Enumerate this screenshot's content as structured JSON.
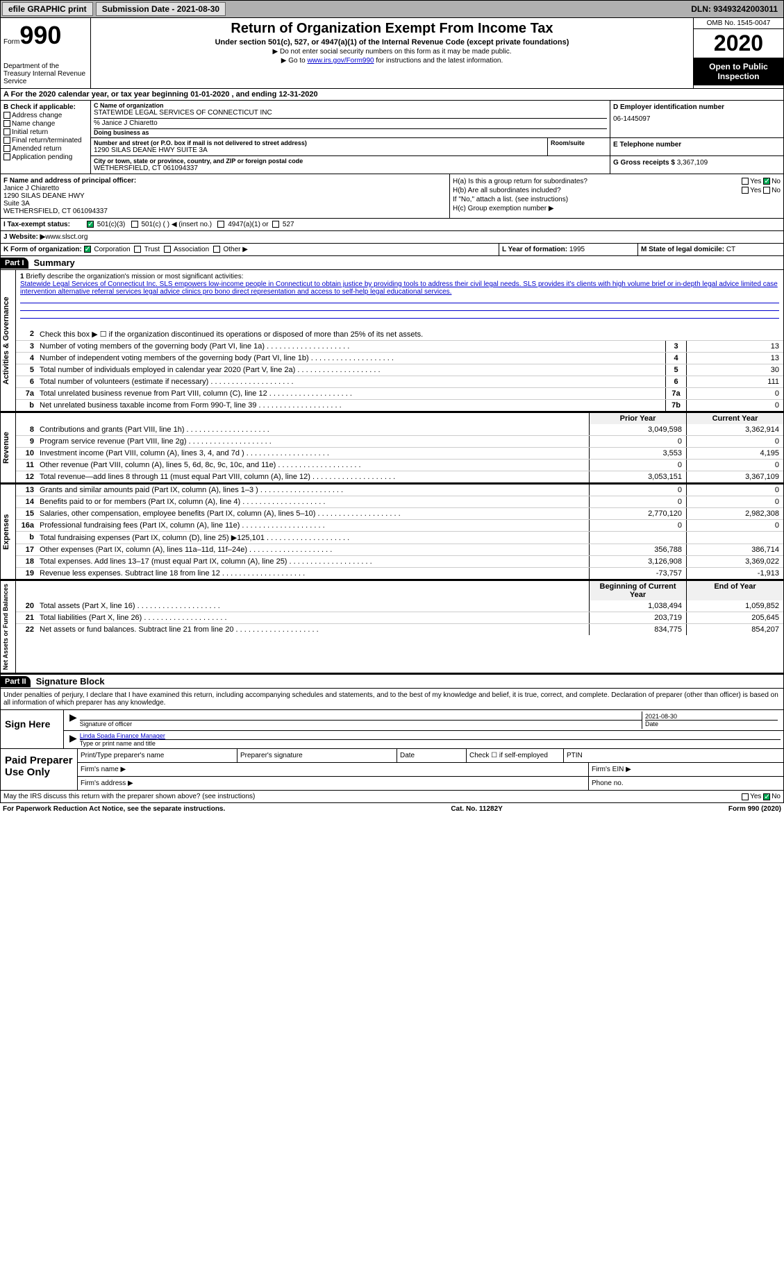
{
  "topbar": {
    "efile": "efile GRAPHIC print",
    "submission_label": "Submission Date - 2021-08-30",
    "dln": "DLN: 93493242003011"
  },
  "header": {
    "form_word": "Form",
    "form_num": "990",
    "dept": "Department of the Treasury\nInternal Revenue Service",
    "title": "Return of Organization Exempt From Income Tax",
    "subtitle": "Under section 501(c), 527, or 4947(a)(1) of the Internal Revenue Code (except private foundations)",
    "note1": "▶ Do not enter social security numbers on this form as it may be made public.",
    "note2_pre": "▶ Go to ",
    "note2_link": "www.irs.gov/Form990",
    "note2_post": " for instructions and the latest information.",
    "omb": "OMB No. 1545-0047",
    "year": "2020",
    "open": "Open to Public Inspection"
  },
  "period": "A For the 2020 calendar year, or tax year beginning 01-01-2020   , and ending 12-31-2020",
  "box_b": {
    "head": "B Check if applicable:",
    "items": [
      "Address change",
      "Name change",
      "Initial return",
      "Final return/terminated",
      "Amended return",
      "Application pending"
    ]
  },
  "box_c": {
    "name_lbl": "C Name of organization",
    "name": "STATEWIDE LEGAL SERVICES OF CONNECTICUT INC",
    "care_of": "% Janice J Chiaretto",
    "dba_lbl": "Doing business as",
    "addr_lbl": "Number and street (or P.O. box if mail is not delivered to street address)",
    "addr": "1290 SILAS DEANE HWY SUITE 3A",
    "room_lbl": "Room/suite",
    "city_lbl": "City or town, state or province, country, and ZIP or foreign postal code",
    "city": "WETHERSFIELD, CT  061094337"
  },
  "box_d": {
    "lbl": "D Employer identification number",
    "val": "06-1445097"
  },
  "box_e": {
    "lbl": "E Telephone number",
    "val": ""
  },
  "box_g": {
    "lbl": "G Gross receipts $",
    "val": "3,367,109"
  },
  "box_f": {
    "lbl": "F Name and address of principal officer:",
    "name": "Janice J Chiaretto",
    "l1": "1290 SILAS DEANE HWY",
    "l2": "Suite 3A",
    "l3": "WETHERSFIELD, CT  061094337"
  },
  "box_h": {
    "a": "H(a)  Is this a group return for subordinates?",
    "b": "H(b)  Are all subordinates included?",
    "note": "If \"No,\" attach a list. (see instructions)",
    "c": "H(c)  Group exemption number ▶"
  },
  "row_i": {
    "lbl": "I  Tax-exempt status:",
    "opts": [
      "501(c)(3)",
      "501(c) (  ) ◀ (insert no.)",
      "4947(a)(1) or",
      "527"
    ]
  },
  "row_j": {
    "lbl": "J  Website: ▶",
    "val": " www.slsct.org"
  },
  "row_k": {
    "lbl": "K Form of organization:",
    "opts": [
      "Corporation",
      "Trust",
      "Association",
      "Other ▶"
    ],
    "l_lbl": "L Year of formation:",
    "l_val": "1995",
    "m_lbl": "M State of legal domicile:",
    "m_val": "CT"
  },
  "part1": {
    "tag": "Part I",
    "title": "Summary"
  },
  "mission": {
    "num": "1",
    "lbl": "Briefly describe the organization's mission or most significant activities:",
    "text": "Statewide Legal Services of Connecticut Inc. SLS empowers low-income people in Connecticut to obtain justice by providing tools to address their civil legal needs. SLS provides it's clients with high volume brief or in-depth legal advice limited case intervention alternative referral services legal advice clinics pro bono direct representation and access to self-help legal educational services."
  },
  "gov_lines": [
    {
      "num": "2",
      "desc": "Check this box ▶ ☐  if the organization discontinued its operations or disposed of more than 25% of its net assets."
    },
    {
      "num": "3",
      "desc": "Number of voting members of the governing body (Part VI, line 1a)",
      "box": "3",
      "val": "13"
    },
    {
      "num": "4",
      "desc": "Number of independent voting members of the governing body (Part VI, line 1b)",
      "box": "4",
      "val": "13"
    },
    {
      "num": "5",
      "desc": "Total number of individuals employed in calendar year 2020 (Part V, line 2a)",
      "box": "5",
      "val": "30"
    },
    {
      "num": "6",
      "desc": "Total number of volunteers (estimate if necessary)",
      "box": "6",
      "val": "111"
    },
    {
      "num": "7a",
      "desc": "Total unrelated business revenue from Part VIII, column (C), line 12",
      "box": "7a",
      "val": "0"
    },
    {
      "num": "b",
      "desc": "Net unrelated business taxable income from Form 990-T, line 39",
      "box": "7b",
      "val": "0"
    }
  ],
  "rev_head": {
    "prior": "Prior Year",
    "current": "Current Year"
  },
  "rev_lines": [
    {
      "num": "8",
      "desc": "Contributions and grants (Part VIII, line 1h)",
      "p": "3,049,598",
      "c": "3,362,914"
    },
    {
      "num": "9",
      "desc": "Program service revenue (Part VIII, line 2g)",
      "p": "0",
      "c": "0"
    },
    {
      "num": "10",
      "desc": "Investment income (Part VIII, column (A), lines 3, 4, and 7d )",
      "p": "3,553",
      "c": "4,195"
    },
    {
      "num": "11",
      "desc": "Other revenue (Part VIII, column (A), lines 5, 6d, 8c, 9c, 10c, and 11e)",
      "p": "0",
      "c": "0"
    },
    {
      "num": "12",
      "desc": "Total revenue—add lines 8 through 11 (must equal Part VIII, column (A), line 12)",
      "p": "3,053,151",
      "c": "3,367,109"
    }
  ],
  "exp_lines": [
    {
      "num": "13",
      "desc": "Grants and similar amounts paid (Part IX, column (A), lines 1–3 )",
      "p": "0",
      "c": "0"
    },
    {
      "num": "14",
      "desc": "Benefits paid to or for members (Part IX, column (A), line 4)",
      "p": "0",
      "c": "0"
    },
    {
      "num": "15",
      "desc": "Salaries, other compensation, employee benefits (Part IX, column (A), lines 5–10)",
      "p": "2,770,120",
      "c": "2,982,308"
    },
    {
      "num": "16a",
      "desc": "Professional fundraising fees (Part IX, column (A), line 11e)",
      "p": "0",
      "c": "0"
    },
    {
      "num": "b",
      "desc": "Total fundraising expenses (Part IX, column (D), line 25) ▶125,101",
      "p": "",
      "c": ""
    },
    {
      "num": "17",
      "desc": "Other expenses (Part IX, column (A), lines 11a–11d, 11f–24e)",
      "p": "356,788",
      "c": "386,714"
    },
    {
      "num": "18",
      "desc": "Total expenses. Add lines 13–17 (must equal Part IX, column (A), line 25)",
      "p": "3,126,908",
      "c": "3,369,022"
    },
    {
      "num": "19",
      "desc": "Revenue less expenses. Subtract line 18 from line 12",
      "p": "-73,757",
      "c": "-1,913"
    }
  ],
  "na_head": {
    "prior": "Beginning of Current Year",
    "current": "End of Year"
  },
  "na_lines": [
    {
      "num": "20",
      "desc": "Total assets (Part X, line 16)",
      "p": "1,038,494",
      "c": "1,059,852"
    },
    {
      "num": "21",
      "desc": "Total liabilities (Part X, line 26)",
      "p": "203,719",
      "c": "205,645"
    },
    {
      "num": "22",
      "desc": "Net assets or fund balances. Subtract line 21 from line 20",
      "p": "834,775",
      "c": "854,207"
    }
  ],
  "vtabs": {
    "gov": "Activities & Governance",
    "rev": "Revenue",
    "exp": "Expenses",
    "na": "Net Assets or Fund Balances"
  },
  "part2": {
    "tag": "Part II",
    "title": "Signature Block"
  },
  "sig": {
    "decl": "Under penalties of perjury, I declare that I have examined this return, including accompanying schedules and statements, and to the best of my knowledge and belief, it is true, correct, and complete. Declaration of preparer (other than officer) is based on all information of which preparer has any knowledge.",
    "sign_here": "Sign Here",
    "sig_officer": "Signature of officer",
    "date": "2021-08-30",
    "date_lbl": "Date",
    "name_title": "Linda Spada Finance Manager",
    "name_lbl": "Type or print name and title"
  },
  "prep": {
    "title": "Paid Preparer Use Only",
    "h1": "Print/Type preparer's name",
    "h2": "Preparer's signature",
    "h3": "Date",
    "h4": "Check ☐ if self-employed",
    "h5": "PTIN",
    "firm_name": "Firm's name    ▶",
    "firm_ein": "Firm's EIN ▶",
    "firm_addr": "Firm's address ▶",
    "phone": "Phone no."
  },
  "footer": {
    "q": "May the IRS discuss this return with the preparer shown above? (see instructions)",
    "pra": "For Paperwork Reduction Act Notice, see the separate instructions.",
    "cat": "Cat. No. 11282Y",
    "form": "Form 990 (2020)"
  }
}
